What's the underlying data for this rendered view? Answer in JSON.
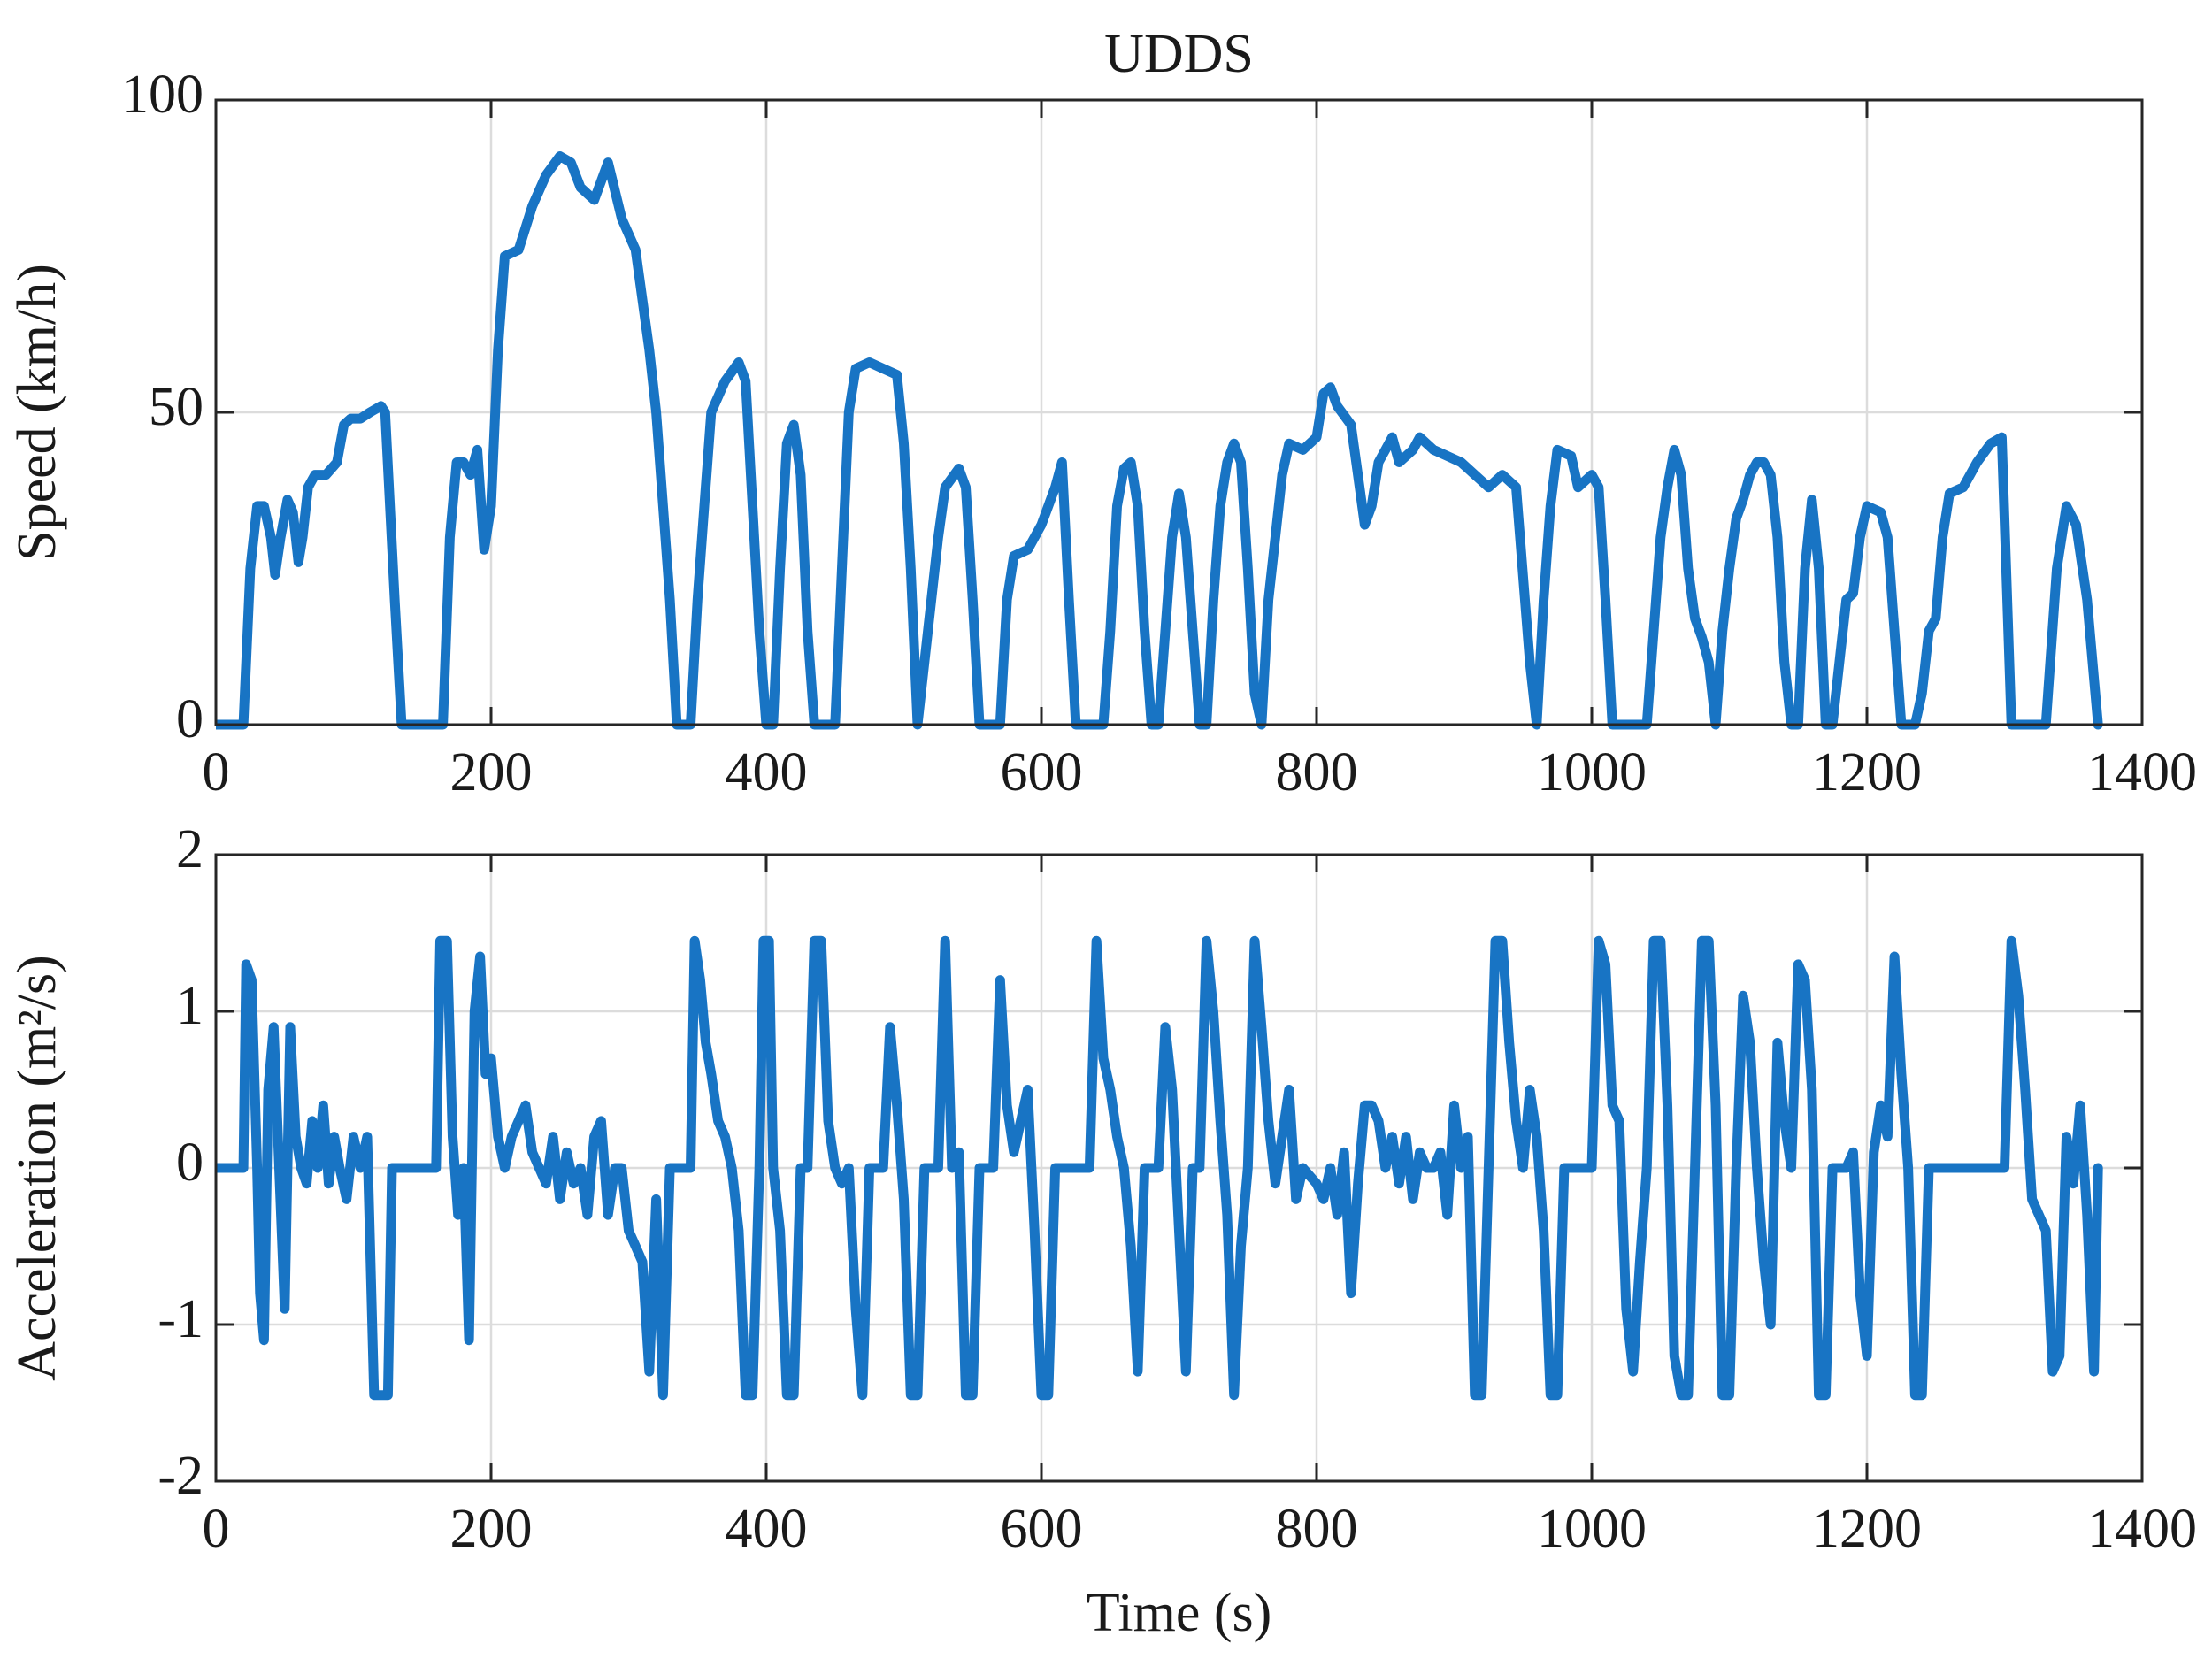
{
  "chart_data": [
    {
      "type": "line",
      "title": "UDDS",
      "ylabel": "Speed (km/h)",
      "color": "#1874c4",
      "grid": true,
      "xlim": [
        0,
        1400
      ],
      "xticks": [
        0,
        200,
        400,
        600,
        800,
        1000,
        1200,
        1400
      ],
      "ylim": [
        0,
        100
      ],
      "yticks": [
        0,
        50,
        100
      ],
      "x": [
        0,
        20,
        25,
        30,
        35,
        40,
        43,
        47,
        52,
        56,
        60,
        63,
        67,
        72,
        80,
        88,
        93,
        98,
        105,
        112,
        120,
        123,
        130,
        135,
        165,
        170,
        175,
        180,
        185,
        190,
        195,
        200,
        205,
        210,
        220,
        230,
        240,
        250,
        258,
        265,
        275,
        285,
        295,
        305,
        315,
        320,
        325,
        330,
        335,
        345,
        350,
        355,
        360,
        370,
        380,
        385,
        390,
        395,
        400,
        405,
        410,
        415,
        420,
        425,
        430,
        435,
        450,
        455,
        460,
        465,
        475,
        485,
        495,
        500,
        505,
        510,
        515,
        520,
        525,
        530,
        540,
        545,
        550,
        555,
        570,
        575,
        580,
        590,
        600,
        610,
        615,
        620,
        625,
        645,
        650,
        655,
        660,
        665,
        670,
        675,
        680,
        685,
        690,
        695,
        700,
        705,
        710,
        715,
        720,
        725,
        730,
        735,
        740,
        745,
        750,
        755,
        760,
        765,
        770,
        775,
        780,
        790,
        800,
        805,
        810,
        815,
        825,
        830,
        835,
        840,
        845,
        850,
        855,
        860,
        870,
        875,
        885,
        895,
        905,
        915,
        925,
        935,
        945,
        955,
        960,
        965,
        970,
        975,
        985,
        990,
        1000,
        1005,
        1010,
        1015,
        1040,
        1045,
        1050,
        1055,
        1060,
        1065,
        1070,
        1075,
        1080,
        1085,
        1090,
        1095,
        1100,
        1105,
        1110,
        1115,
        1120,
        1125,
        1130,
        1135,
        1140,
        1145,
        1150,
        1155,
        1160,
        1165,
        1170,
        1175,
        1180,
        1185,
        1190,
        1195,
        1200,
        1210,
        1215,
        1220,
        1225,
        1235,
        1240,
        1245,
        1250,
        1255,
        1260,
        1270,
        1280,
        1290,
        1298,
        1305,
        1330,
        1338,
        1345,
        1352,
        1360,
        1368
      ],
      "values": [
        0,
        0,
        25,
        35,
        35,
        30,
        24,
        30,
        36,
        34,
        26,
        30,
        38,
        40,
        40,
        42,
        48,
        49,
        49,
        50,
        51,
        50,
        20,
        0,
        0,
        30,
        42,
        42,
        40,
        44,
        28,
        35,
        60,
        75,
        76,
        83,
        88,
        91,
        90,
        86,
        84,
        90,
        81,
        76,
        60,
        50,
        35,
        20,
        0,
        0,
        20,
        35,
        50,
        55,
        58,
        55,
        35,
        15,
        0,
        0,
        25,
        45,
        48,
        40,
        15,
        0,
        0,
        25,
        50,
        57,
        58,
        57,
        56,
        45,
        25,
        0,
        10,
        20,
        30,
        38,
        41,
        38,
        20,
        0,
        0,
        20,
        27,
        28,
        32,
        38,
        42,
        20,
        0,
        0,
        15,
        35,
        41,
        42,
        35,
        15,
        0,
        0,
        15,
        30,
        37,
        30,
        15,
        0,
        0,
        20,
        35,
        42,
        45,
        42,
        25,
        5,
        0,
        20,
        30,
        40,
        45,
        44,
        46,
        53,
        54,
        51,
        48,
        40,
        32,
        35,
        42,
        44,
        46,
        42,
        44,
        46,
        44,
        43,
        42,
        40,
        38,
        40,
        38,
        10,
        0,
        20,
        35,
        44,
        43,
        38,
        40,
        38,
        20,
        0,
        0,
        15,
        30,
        38,
        44,
        40,
        25,
        17,
        14,
        10,
        0,
        15,
        25,
        33,
        36,
        40,
        42,
        42,
        40,
        30,
        10,
        0,
        0,
        25,
        36,
        25,
        0,
        0,
        10,
        20,
        21,
        30,
        35,
        34,
        30,
        15,
        0,
        0,
        5,
        15,
        17,
        30,
        37,
        38,
        42,
        45,
        46,
        0,
        0,
        25,
        35,
        32,
        20,
        0
      ]
    },
    {
      "type": "line",
      "ylabel": "Acceleration (m²/s)",
      "xlabel": "Time (s)",
      "color": "#1874c4",
      "grid": true,
      "xlim": [
        0,
        1400
      ],
      "xticks": [
        0,
        200,
        400,
        600,
        800,
        1000,
        1200,
        1400
      ],
      "ylim": [
        -2,
        2
      ],
      "yticks": [
        -2,
        -1,
        0,
        1,
        2
      ],
      "x": [
        0,
        20,
        22,
        26,
        30,
        32,
        35,
        38,
        42,
        46,
        50,
        54,
        58,
        62,
        66,
        70,
        74,
        78,
        82,
        86,
        90,
        95,
        100,
        105,
        110,
        115,
        125,
        128,
        160,
        163,
        168,
        172,
        176,
        180,
        184,
        188,
        192,
        196,
        200,
        205,
        210,
        215,
        220,
        225,
        230,
        235,
        240,
        245,
        250,
        255,
        260,
        265,
        270,
        275,
        280,
        285,
        290,
        295,
        300,
        305,
        310,
        315,
        320,
        325,
        330,
        345,
        348,
        352,
        356,
        360,
        365,
        370,
        375,
        380,
        385,
        390,
        395,
        398,
        402,
        405,
        410,
        415,
        420,
        425,
        430,
        435,
        440,
        445,
        450,
        455,
        460,
        465,
        470,
        475,
        480,
        485,
        490,
        495,
        500,
        505,
        510,
        515,
        520,
        525,
        530,
        535,
        540,
        545,
        550,
        555,
        565,
        570,
        575,
        580,
        585,
        590,
        595,
        600,
        605,
        610,
        635,
        640,
        645,
        650,
        655,
        660,
        665,
        670,
        675,
        685,
        690,
        695,
        700,
        705,
        710,
        715,
        720,
        725,
        730,
        735,
        740,
        745,
        750,
        755,
        760,
        765,
        770,
        775,
        780,
        785,
        790,
        800,
        805,
        810,
        815,
        820,
        825,
        830,
        835,
        840,
        845,
        850,
        855,
        860,
        865,
        870,
        875,
        880,
        885,
        890,
        895,
        900,
        905,
        910,
        915,
        920,
        925,
        930,
        935,
        940,
        945,
        950,
        955,
        960,
        965,
        970,
        975,
        980,
        1000,
        1005,
        1010,
        1015,
        1020,
        1025,
        1030,
        1035,
        1040,
        1045,
        1050,
        1055,
        1060,
        1065,
        1070,
        1075,
        1080,
        1085,
        1090,
        1095,
        1100,
        1105,
        1110,
        1115,
        1120,
        1125,
        1130,
        1135,
        1140,
        1145,
        1150,
        1155,
        1160,
        1165,
        1170,
        1175,
        1185,
        1190,
        1195,
        1200,
        1205,
        1210,
        1215,
        1220,
        1225,
        1230,
        1235,
        1240,
        1245,
        1300,
        1305,
        1310,
        1315,
        1320,
        1325,
        1330,
        1335,
        1340,
        1345,
        1350,
        1355,
        1360,
        1365,
        1368
      ],
      "values": [
        0,
        0,
        1.3,
        1.2,
        0,
        -0.8,
        -1.1,
        0.5,
        0.9,
        0,
        -0.9,
        0.9,
        0.2,
        0,
        -0.1,
        0.3,
        0,
        0.4,
        -0.1,
        0.2,
        0,
        -0.2,
        0.2,
        0,
        0.2,
        -1.45,
        -1.45,
        0,
        0,
        1.45,
        1.45,
        0.2,
        -0.3,
        0,
        -1.1,
        1.0,
        1.35,
        0.6,
        0.7,
        0.2,
        0,
        0.2,
        0.3,
        0.4,
        0.1,
        0,
        -0.1,
        0.2,
        -0.2,
        0.1,
        -0.1,
        0,
        -0.3,
        0.2,
        0.3,
        -0.3,
        0,
        0,
        -0.4,
        -0.5,
        -0.6,
        -1.3,
        -0.2,
        -1.45,
        0,
        0,
        1.45,
        1.2,
        0.8,
        0.6,
        0.3,
        0.2,
        0,
        -0.4,
        -1.45,
        -1.45,
        0,
        1.45,
        1.45,
        0,
        -0.4,
        -1.45,
        -1.45,
        0,
        0,
        1.45,
        1.45,
        0.3,
        0,
        -0.1,
        0,
        -0.9,
        -1.45,
        0,
        0,
        0,
        0.9,
        0.4,
        -0.2,
        -1.45,
        -1.45,
        0,
        0,
        0,
        1.45,
        0,
        0.1,
        -1.45,
        -1.45,
        0,
        0,
        1.2,
        0.4,
        0.1,
        0.3,
        0.5,
        -0.4,
        -1.45,
        -1.45,
        0,
        0,
        1.45,
        0.7,
        0.5,
        0.2,
        0,
        -0.5,
        -1.3,
        0,
        0,
        0.9,
        0.5,
        -0.4,
        -1.3,
        0,
        0,
        1.45,
        1.0,
        0.3,
        -0.3,
        -1.45,
        -0.5,
        0,
        1.45,
        0.9,
        0.3,
        -0.1,
        0.2,
        0.5,
        -0.2,
        0,
        -0.1,
        -0.2,
        0,
        -0.3,
        0.1,
        -0.8,
        -0.1,
        0.4,
        0.4,
        0.3,
        0,
        0.2,
        -0.1,
        0.2,
        -0.2,
        0.1,
        0,
        0,
        0.1,
        -0.3,
        0.4,
        0,
        0.2,
        -1.45,
        -1.45,
        0,
        1.45,
        1.45,
        0.8,
        0.3,
        0,
        0.5,
        0.2,
        -0.4,
        -1.45,
        -1.45,
        0,
        0,
        1.45,
        1.3,
        0.4,
        0.3,
        -0.9,
        -1.3,
        -0.6,
        0,
        1.45,
        1.45,
        0.4,
        -1.2,
        -1.45,
        -1.45,
        0,
        1.45,
        1.45,
        0.4,
        -1.45,
        -1.45,
        0,
        1.1,
        0.8,
        0,
        -0.6,
        -1.0,
        0.8,
        0.3,
        0,
        1.3,
        1.2,
        0.5,
        -1.45,
        -1.45,
        0,
        0,
        0.1,
        -0.8,
        -1.2,
        0.1,
        0.4,
        0.2,
        1.35,
        0.6,
        0,
        -1.45,
        -1.45,
        0,
        0,
        1.45,
        1.1,
        0.5,
        -0.2,
        -0.3,
        -0.4,
        -1.3,
        -1.2,
        0.2,
        -0.1,
        0.4,
        -0.3,
        -1.3,
        0
      ]
    }
  ]
}
